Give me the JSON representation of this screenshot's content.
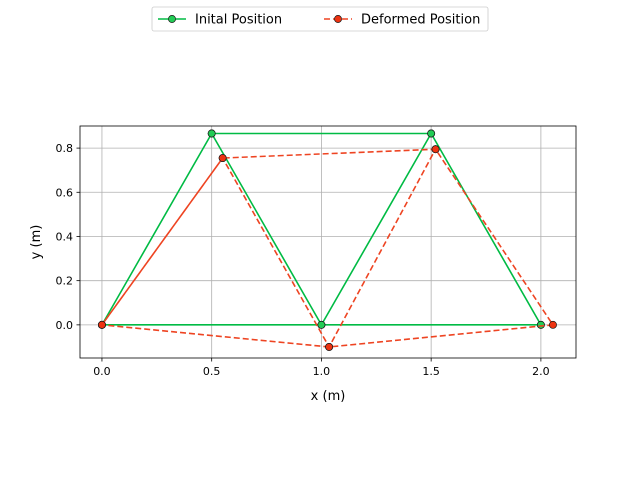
{
  "chart_data": {
    "type": "line",
    "title": "",
    "xlabel": "x (m)",
    "ylabel": "y (m)",
    "xlim": [
      -0.1,
      2.16
    ],
    "ylim": [
      -0.15,
      0.9
    ],
    "x_ticks": [
      0.0,
      0.5,
      1.0,
      1.5,
      2.0
    ],
    "x_tick_labels": [
      "0.0",
      "0.5",
      "1.0",
      "1.5",
      "2.0"
    ],
    "y_ticks": [
      0.0,
      0.2,
      0.4,
      0.6,
      0.8
    ],
    "y_tick_labels": [
      "0.0",
      "0.2",
      "0.4",
      "0.6",
      "0.8"
    ],
    "grid": true,
    "legend_position": "top-center",
    "series": [
      {
        "name": "Inital Position",
        "color": "#00bb44",
        "marker_fill": "#22cc55",
        "linestyle": "solid",
        "x": [
          0.0,
          0.5,
          1.5,
          2.0,
          1.0,
          0.0,
          2.0,
          1.5,
          1.0,
          0.5
        ],
        "y": [
          0.0,
          0.866,
          0.866,
          0.0,
          0.0,
          0.0,
          0.0,
          0.866,
          0.0,
          0.866
        ]
      },
      {
        "name": "Deformed Position",
        "color": "#ee4422",
        "marker_fill": "#ee3311",
        "linestyle": "dashed",
        "x": [
          0.0,
          0.55,
          1.52,
          2.055,
          1.035,
          0.0,
          0.55,
          1.035,
          1.52
        ],
        "y": [
          0.0,
          0.755,
          0.795,
          0.0,
          -0.1,
          0.0,
          0.755,
          -0.1,
          0.795
        ]
      }
    ]
  }
}
